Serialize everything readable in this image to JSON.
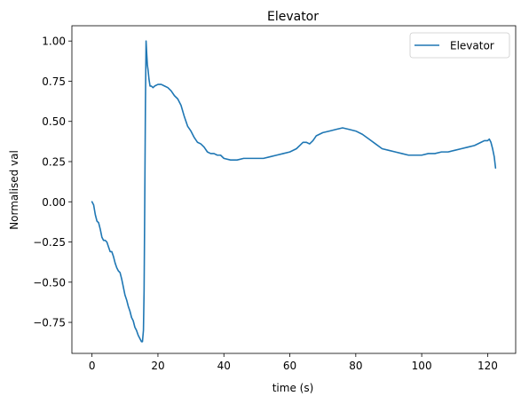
{
  "chart_data": {
    "type": "line",
    "title": "Elevator",
    "xlabel": "time (s)",
    "ylabel": "Normalised val",
    "xlim": [
      -6.1,
      128.5
    ],
    "ylim": [
      -0.943,
      1.095
    ],
    "grid": false,
    "legend": {
      "placement": "top-right",
      "entries": [
        "Elevator"
      ]
    },
    "x_ticks": [
      0,
      20,
      40,
      60,
      80,
      100,
      120
    ],
    "x_tick_labels": [
      "0",
      "20",
      "40",
      "60",
      "80",
      "100",
      "120"
    ],
    "y_ticks": [
      -0.75,
      -0.5,
      -0.25,
      0.0,
      0.25,
      0.5,
      0.75,
      1.0
    ],
    "y_tick_labels": [
      "−0.75",
      "−0.50",
      "−0.25",
      "0.00",
      "0.25",
      "0.50",
      "0.75",
      "1.00"
    ],
    "series": [
      {
        "name": "Elevator",
        "color": "#1f77b4",
        "x": [
          0,
          0.5,
          1,
          1.5,
          2,
          2.5,
          3,
          3.5,
          4,
          4.5,
          5,
          5.5,
          6,
          6.5,
          7,
          7.5,
          8,
          8.5,
          9,
          9.5,
          10,
          10.5,
          11,
          11.5,
          12,
          12.5,
          13,
          13.5,
          14,
          14.5,
          15,
          15.3,
          15.6,
          15.8,
          16,
          16.2,
          16.4,
          16.6,
          16.8,
          17,
          17.3,
          17.6,
          18,
          18.5,
          19,
          20,
          21,
          22,
          23,
          24,
          25,
          26,
          27,
          28,
          29,
          30,
          31,
          32,
          33,
          34,
          35,
          36,
          37,
          38,
          39,
          40,
          42,
          44,
          46,
          48,
          50,
          52,
          54,
          56,
          58,
          60,
          62,
          63,
          64,
          65,
          66,
          67,
          68,
          70,
          72,
          74,
          76,
          78,
          80,
          82,
          84,
          86,
          88,
          90,
          92,
          94,
          96,
          98,
          100,
          102,
          104,
          106,
          108,
          110,
          112,
          114,
          116,
          118,
          119,
          120,
          120.5,
          121,
          121.5,
          122,
          122.4
        ],
        "y": [
          0.0,
          -0.02,
          -0.08,
          -0.12,
          -0.13,
          -0.17,
          -0.22,
          -0.24,
          -0.24,
          -0.25,
          -0.28,
          -0.31,
          -0.31,
          -0.34,
          -0.38,
          -0.41,
          -0.43,
          -0.44,
          -0.48,
          -0.53,
          -0.58,
          -0.61,
          -0.65,
          -0.68,
          -0.72,
          -0.74,
          -0.78,
          -0.8,
          -0.83,
          -0.85,
          -0.87,
          -0.87,
          -0.8,
          -0.55,
          0.0,
          0.6,
          1.0,
          0.92,
          0.85,
          0.82,
          0.76,
          0.72,
          0.72,
          0.71,
          0.72,
          0.73,
          0.73,
          0.72,
          0.71,
          0.69,
          0.66,
          0.64,
          0.6,
          0.53,
          0.47,
          0.44,
          0.4,
          0.37,
          0.36,
          0.34,
          0.31,
          0.3,
          0.3,
          0.29,
          0.29,
          0.27,
          0.26,
          0.26,
          0.27,
          0.27,
          0.27,
          0.27,
          0.28,
          0.29,
          0.3,
          0.31,
          0.33,
          0.35,
          0.37,
          0.37,
          0.36,
          0.38,
          0.41,
          0.43,
          0.44,
          0.45,
          0.46,
          0.45,
          0.44,
          0.42,
          0.39,
          0.36,
          0.33,
          0.32,
          0.31,
          0.3,
          0.29,
          0.29,
          0.29,
          0.3,
          0.3,
          0.31,
          0.31,
          0.32,
          0.33,
          0.34,
          0.35,
          0.37,
          0.38,
          0.38,
          0.39,
          0.37,
          0.33,
          0.28,
          0.21
        ]
      }
    ]
  }
}
